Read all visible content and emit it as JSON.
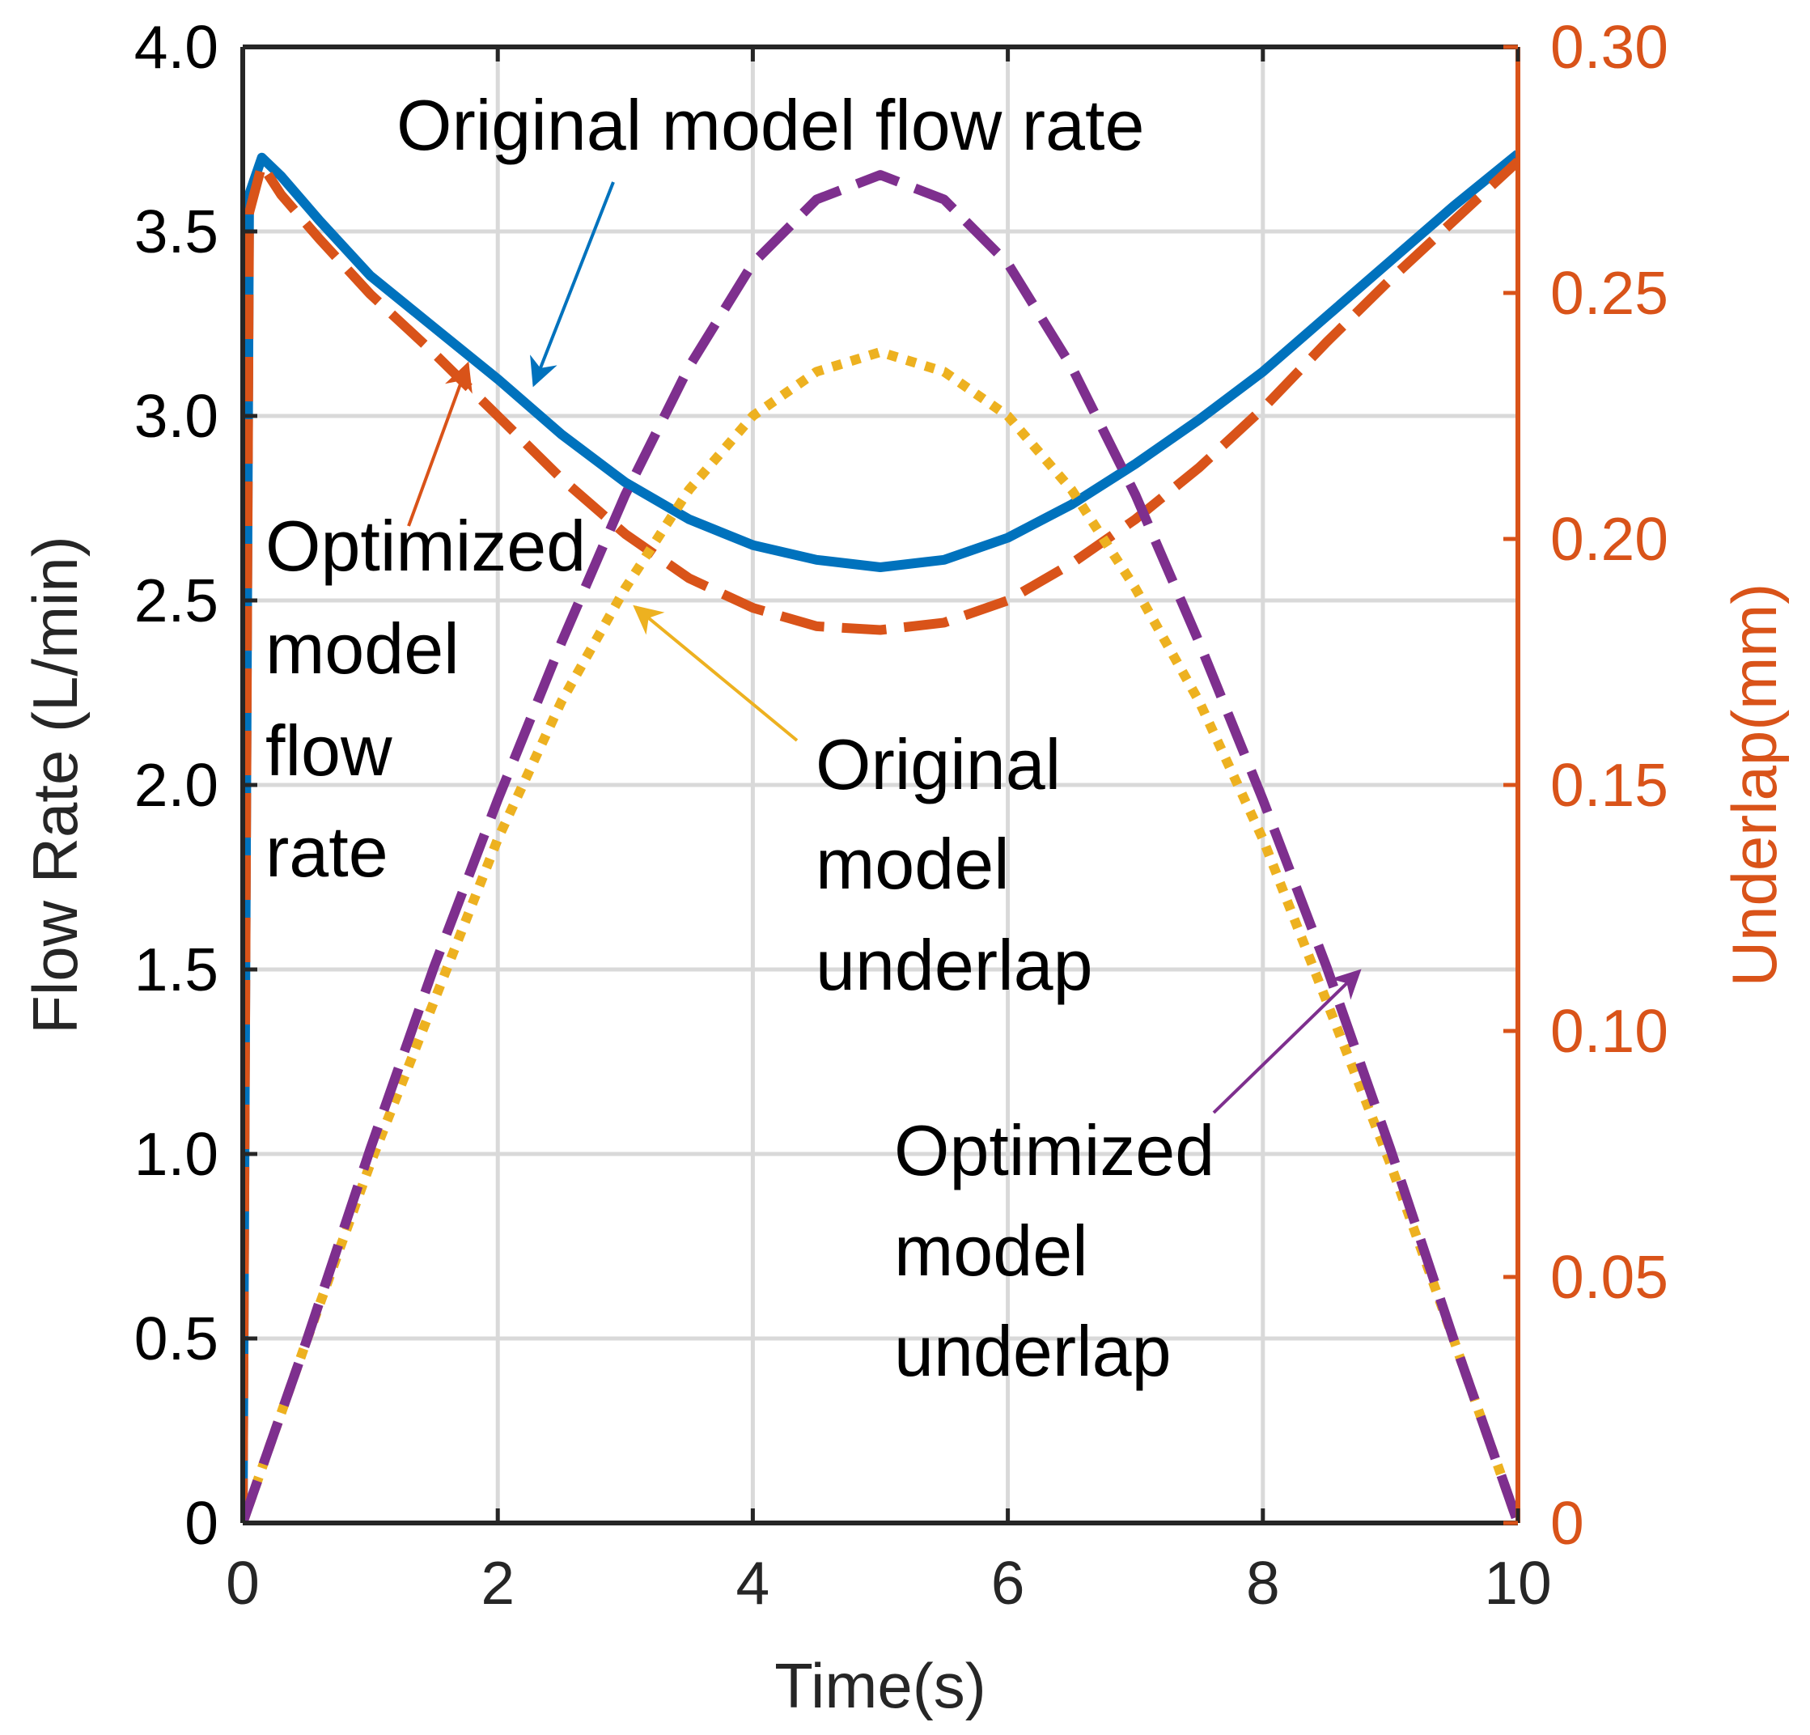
{
  "chart_data": {
    "type": "line",
    "title": "",
    "xlabel": "Time(s)",
    "ylabel": "Flow Rate (L/min)",
    "ylabel_right": "Underlap(mm)",
    "xlim": [
      0,
      10
    ],
    "ylim": [
      0,
      4.0
    ],
    "ylim_right": [
      0,
      0.3
    ],
    "grid": true,
    "x_ticks": [
      0,
      2,
      4,
      6,
      8,
      10
    ],
    "x_tick_labels": [
      "0",
      "2",
      "4",
      "6",
      "8",
      "10"
    ],
    "y_ticks": [
      0,
      0.5,
      1.0,
      1.5,
      2.0,
      2.5,
      3.0,
      3.5,
      4.0
    ],
    "y_tick_labels": [
      "0",
      "0.5",
      "1.0",
      "1.5",
      "2.0",
      "2.5",
      "3.0",
      "3.5",
      "4.0"
    ],
    "y_right_ticks": [
      0,
      0.05,
      0.1,
      0.15,
      0.2,
      0.25,
      0.3
    ],
    "y_right_tick_labels": [
      "0",
      "0.05",
      "0.10",
      "0.15",
      "0.20",
      "0.25",
      "0.30"
    ],
    "colors": {
      "blue": "#0072BD",
      "orange": "#D95319",
      "yellow": "#EDB120",
      "purple": "#7E2F8E",
      "grid": "#D9D9D9",
      "axis": "#262626"
    },
    "series": [
      {
        "name": "Original model flow rate",
        "axis": "left",
        "style": "solid",
        "color": "#0072BD",
        "x": [
          0,
          0.05,
          0.15,
          0.3,
          0.6,
          1.0,
          1.5,
          2.0,
          2.5,
          3.0,
          3.5,
          4.0,
          4.5,
          5.0,
          5.5,
          6.0,
          6.5,
          7.0,
          7.5,
          8.0,
          8.5,
          9.0,
          9.5,
          10.0
        ],
        "values": [
          0,
          3.6,
          3.7,
          3.65,
          3.53,
          3.38,
          3.24,
          3.1,
          2.95,
          2.82,
          2.72,
          2.65,
          2.61,
          2.59,
          2.61,
          2.67,
          2.76,
          2.87,
          2.99,
          3.12,
          3.27,
          3.42,
          3.57,
          3.71
        ]
      },
      {
        "name": "Optimized model flow rate",
        "axis": "left",
        "style": "dashed",
        "color": "#D95319",
        "x": [
          0,
          0.05,
          0.15,
          0.3,
          0.6,
          1.0,
          1.5,
          2.0,
          2.5,
          3.0,
          3.5,
          4.0,
          4.5,
          5.0,
          5.5,
          6.0,
          6.5,
          7.0,
          7.5,
          8.0,
          8.5,
          9.0,
          9.5,
          10.0
        ],
        "values": [
          0,
          3.55,
          3.68,
          3.6,
          3.48,
          3.33,
          3.17,
          3.0,
          2.83,
          2.68,
          2.56,
          2.48,
          2.43,
          2.42,
          2.44,
          2.5,
          2.6,
          2.72,
          2.86,
          3.02,
          3.2,
          3.37,
          3.53,
          3.69
        ]
      },
      {
        "name": "Original model underlap",
        "axis": "right",
        "style": "dotted",
        "color": "#EDB120",
        "x": [
          0,
          0.5,
          1.0,
          1.5,
          2.0,
          2.5,
          3.0,
          3.5,
          4.0,
          4.5,
          5.0,
          5.5,
          6.0,
          6.5,
          7.0,
          7.5,
          8.0,
          8.5,
          9.0,
          9.5,
          10.0
        ],
        "values": [
          0,
          0.037,
          0.073,
          0.106,
          0.139,
          0.167,
          0.19,
          0.21,
          0.225,
          0.234,
          0.238,
          0.234,
          0.225,
          0.21,
          0.19,
          0.167,
          0.139,
          0.106,
          0.073,
          0.037,
          0
        ]
      },
      {
        "name": "Optimized model underlap",
        "axis": "right",
        "style": "dashed",
        "color": "#7E2F8E",
        "x": [
          0,
          0.5,
          1.0,
          1.5,
          2.0,
          2.5,
          3.0,
          3.5,
          4.0,
          4.5,
          5.0,
          5.5,
          6.0,
          6.5,
          7.0,
          7.5,
          8.0,
          8.5,
          9.0,
          9.5,
          10.0
        ],
        "values": [
          0,
          0.037,
          0.076,
          0.113,
          0.147,
          0.179,
          0.209,
          0.235,
          0.256,
          0.269,
          0.274,
          0.269,
          0.256,
          0.235,
          0.209,
          0.179,
          0.147,
          0.113,
          0.076,
          0.037,
          0
        ]
      }
    ],
    "annotations": [
      {
        "id": "orig-flow",
        "lines": [
          "Original model flow rate"
        ],
        "color": "#0072BD"
      },
      {
        "id": "opt-flow",
        "lines": [
          "Optimized",
          "model",
          "flow",
          "rate"
        ],
        "color": "#D95319"
      },
      {
        "id": "orig-underlap",
        "lines": [
          "Original",
          "model",
          "underlap"
        ],
        "color": "#EDB120"
      },
      {
        "id": "opt-underlap",
        "lines": [
          "Optimized",
          "model",
          "underlap"
        ],
        "color": "#7E2F8E"
      }
    ]
  }
}
